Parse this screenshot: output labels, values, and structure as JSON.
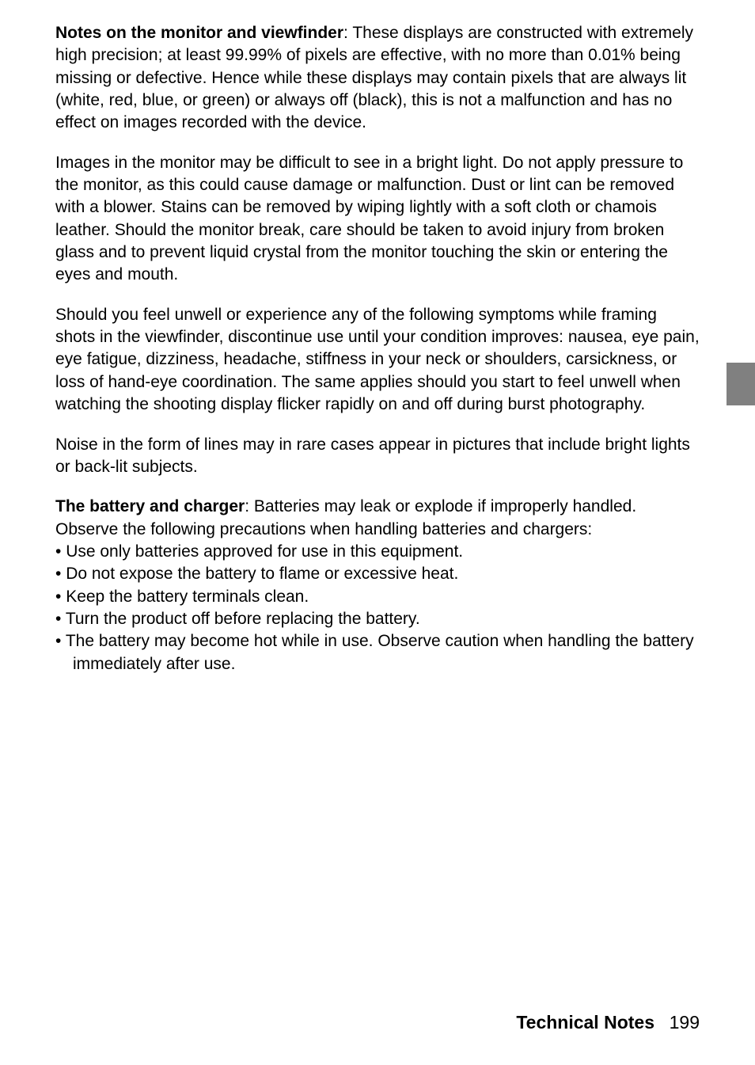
{
  "sections": {
    "monitor_viewfinder": {
      "heading": "Notes on the monitor and viewfinder",
      "intro": ": These displays are constructed with extremely high precision; at least 99.99% of pixels are effective, with no more than 0.01% being missing or defective. Hence while these displays may contain pixels that are always lit (white, red, blue, or green) or always off (black), this is not a malfunction and has no effect on images recorded with the device."
    },
    "monitor_bright_light": {
      "text": "Images in the monitor may be difficult to see in a bright light. Do not apply pressure to the monitor, as this could cause damage or malfunction. Dust or lint can be removed with a blower. Stains can be removed by wiping lightly with a soft cloth or chamois leather. Should the monitor break, care should be taken to avoid injury from broken glass and to prevent liquid crystal from the monitor touching the skin or entering the eyes and mouth."
    },
    "unwell_symptoms": {
      "text": "Should you feel unwell or experience any of the following symptoms while framing shots in the viewfinder, discontinue use until your condition improves: nausea, eye pain, eye fatigue, dizziness, headache, stiffness in your neck or shoulders, carsickness, or loss of hand-eye coordination. The same applies should you start to feel unwell when watching the shooting display flicker rapidly on and off during burst photography."
    },
    "noise_lines": {
      "text": "Noise in the form of lines may in rare cases appear in pictures that include bright lights or back-lit subjects."
    },
    "battery_charger": {
      "heading": "The battery and charger",
      "intro": ": Batteries may leak or explode if improperly handled. Observe the following precautions when handling batteries and chargers:",
      "bullets": [
        "Use only batteries approved for use in this equipment.",
        "Do not expose the battery to flame or excessive heat.",
        "Keep the battery terminals clean.",
        "Turn the product off before replacing the battery.",
        "The battery may become hot while in use. Observe caution when handling the battery immediately after use."
      ]
    }
  },
  "footer": {
    "section_name": "Technical Notes",
    "page_number": "199"
  },
  "colors": {
    "text": "#000000",
    "background": "#ffffff",
    "tab": "#808080"
  },
  "typography": {
    "body_size": 21,
    "heading_weight": "bold",
    "line_height": 1.35
  }
}
